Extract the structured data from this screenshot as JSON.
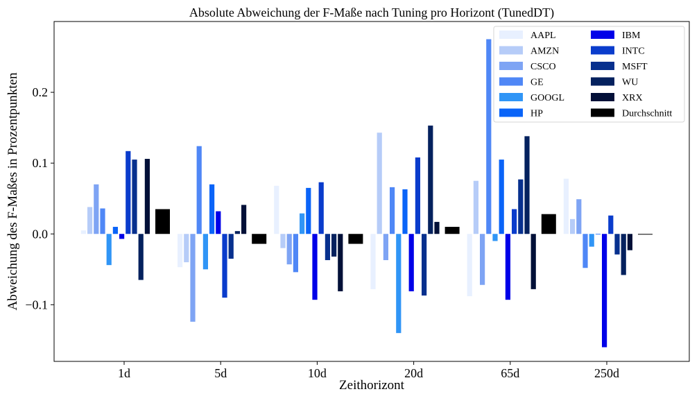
{
  "chart_data": {
    "type": "bar",
    "title": "Absolute Abweichung der F-Maße nach Tuning pro Horizont (TunedDT)",
    "xlabel": "Zeithorizont",
    "ylabel": "Abweichung des F-Maßes in Prozentpunkten",
    "categories": [
      "1d",
      "5d",
      "10d",
      "20d",
      "65d",
      "250d"
    ],
    "ylim": [
      -0.18,
      0.3
    ],
    "yticks": [
      -0.1,
      0.0,
      0.1,
      0.2
    ],
    "ytick_labels": [
      "−0.1",
      "0.0",
      "0.1",
      "0.2"
    ],
    "grid": false,
    "legend_position": "top-right",
    "legend_columns": 2,
    "series": [
      {
        "name": "AAPL",
        "color": "#e8f0ff",
        "values": [
          0.005,
          -0.047,
          0.068,
          -0.078,
          -0.088,
          0.078
        ]
      },
      {
        "name": "AMZN",
        "color": "#b6ccf8",
        "values": [
          0.038,
          -0.04,
          -0.02,
          0.143,
          0.075,
          0.021
        ]
      },
      {
        "name": "CSCO",
        "color": "#7ea4f4",
        "values": [
          0.07,
          -0.124,
          -0.043,
          -0.037,
          -0.072,
          0.049
        ]
      },
      {
        "name": "GE",
        "color": "#4f87f6",
        "values": [
          0.036,
          0.124,
          -0.054,
          0.066,
          0.275,
          -0.048
        ]
      },
      {
        "name": "GOOGL",
        "color": "#3095f6",
        "values": [
          -0.044,
          -0.05,
          0.029,
          -0.14,
          -0.01,
          -0.018
        ]
      },
      {
        "name": "HP",
        "color": "#0a64f8",
        "values": [
          0.01,
          0.07,
          0.065,
          0.063,
          0.105,
          0.0
        ]
      },
      {
        "name": "IBM",
        "color": "#0000e8",
        "values": [
          -0.007,
          0.032,
          -0.093,
          -0.081,
          -0.093,
          -0.16
        ]
      },
      {
        "name": "INTC",
        "color": "#0a3ccc",
        "values": [
          0.117,
          -0.09,
          0.073,
          0.108,
          0.035,
          0.026
        ]
      },
      {
        "name": "MSFT",
        "color": "#07308e",
        "values": [
          0.105,
          -0.035,
          -0.037,
          -0.087,
          0.077,
          -0.029
        ]
      },
      {
        "name": "WU",
        "color": "#04215e",
        "values": [
          -0.065,
          0.004,
          -0.032,
          0.153,
          0.138,
          -0.058
        ]
      },
      {
        "name": "XRX",
        "color": "#021038",
        "values": [
          0.106,
          0.041,
          -0.081,
          0.017,
          -0.078,
          -0.023
        ]
      },
      {
        "name": "Durchschnitt",
        "color": "#000000",
        "values": [
          0.035,
          -0.014,
          -0.014,
          0.01,
          0.028,
          -0.001
        ]
      }
    ]
  }
}
